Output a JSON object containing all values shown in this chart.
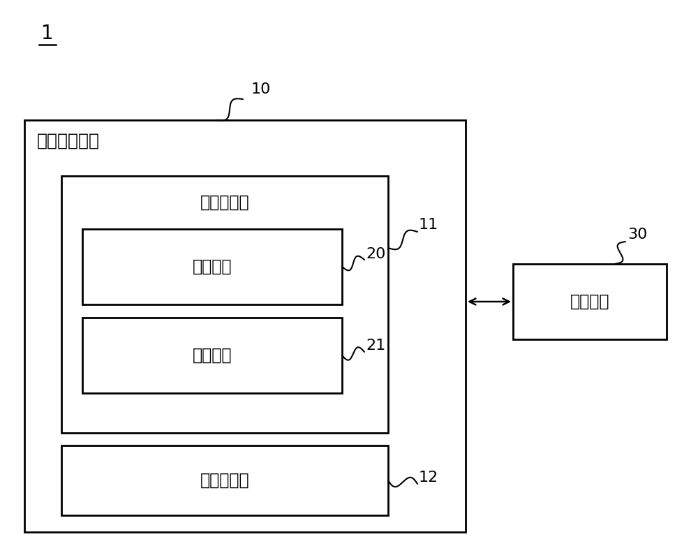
{
  "bg_color": "#ffffff",
  "line_color": "#000000",
  "label_1": "1",
  "label_10": "10",
  "label_11": "11",
  "label_12": "12",
  "label_20": "20",
  "label_21": "21",
  "label_30": "30",
  "text_main_box": "信息分发装置",
  "text_community_mgr": "社群管理部",
  "text_region1": "地区社群",
  "text_region2": "地区社群",
  "text_user_mgr": "用户管理部",
  "text_terminal": "终端装置",
  "font_size_label": 16,
  "font_size_main_label": 18,
  "font_size_box": 17,
  "font_size_ref": 16
}
